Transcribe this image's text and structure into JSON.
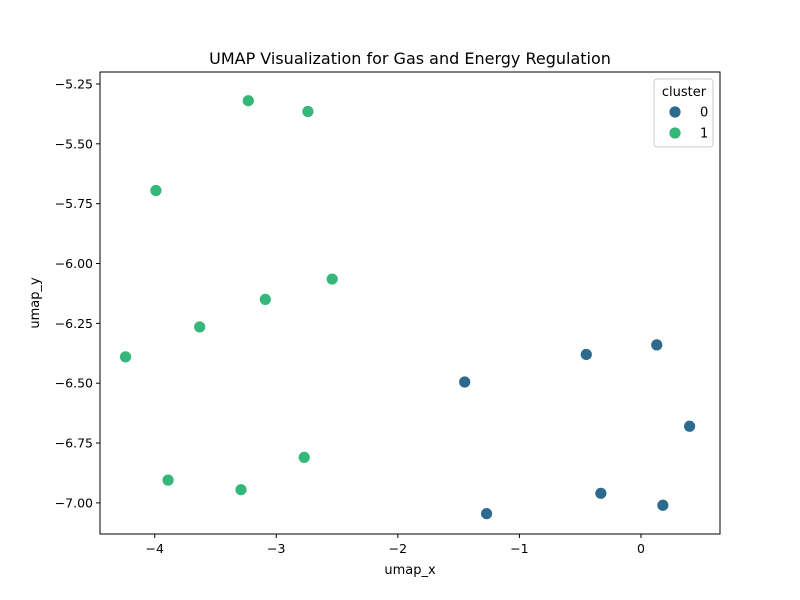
{
  "chart_data": {
    "type": "scatter",
    "title": "UMAP Visualization for Gas and Energy Regulation",
    "xlabel": "umap_x",
    "ylabel": "umap_y",
    "xlim": [
      -4.45,
      0.65
    ],
    "ylim": [
      -7.13,
      -5.2
    ],
    "xticks": [
      -4,
      -3,
      -2,
      -1,
      0
    ],
    "xtick_labels": [
      "−4",
      "−3",
      "−2",
      "−1",
      "0"
    ],
    "yticks": [
      -7.0,
      -6.75,
      -6.5,
      -6.25,
      -6.0,
      -5.75,
      -5.5,
      -5.25
    ],
    "ytick_labels": [
      "−7.00",
      "−6.75",
      "−6.50",
      "−6.25",
      "−6.00",
      "−5.75",
      "−5.50",
      "−5.25"
    ],
    "grid": false,
    "legend": {
      "title": "cluster",
      "placement": "top-right",
      "entries": [
        {
          "label": "0",
          "color": "#2c6b8e"
        },
        {
          "label": "1",
          "color": "#35b779"
        }
      ]
    },
    "series": [
      {
        "name": "0",
        "color": "#2c6b8e",
        "points": [
          {
            "x": 0.13,
            "y": -6.34
          },
          {
            "x": -0.45,
            "y": -6.38
          },
          {
            "x": -1.45,
            "y": -6.495
          },
          {
            "x": 0.4,
            "y": -6.68
          },
          {
            "x": -0.33,
            "y": -6.96
          },
          {
            "x": 0.18,
            "y": -7.01
          },
          {
            "x": -1.27,
            "y": -7.045
          }
        ]
      },
      {
        "name": "1",
        "color": "#35b779",
        "points": [
          {
            "x": -3.23,
            "y": -5.32
          },
          {
            "x": -2.74,
            "y": -5.365
          },
          {
            "x": -3.99,
            "y": -5.695
          },
          {
            "x": -2.54,
            "y": -6.065
          },
          {
            "x": -3.09,
            "y": -6.15
          },
          {
            "x": -3.63,
            "y": -6.265
          },
          {
            "x": -4.24,
            "y": -6.39
          },
          {
            "x": -2.77,
            "y": -6.81
          },
          {
            "x": -3.89,
            "y": -6.905
          },
          {
            "x": -3.29,
            "y": -6.945
          }
        ]
      }
    ]
  }
}
